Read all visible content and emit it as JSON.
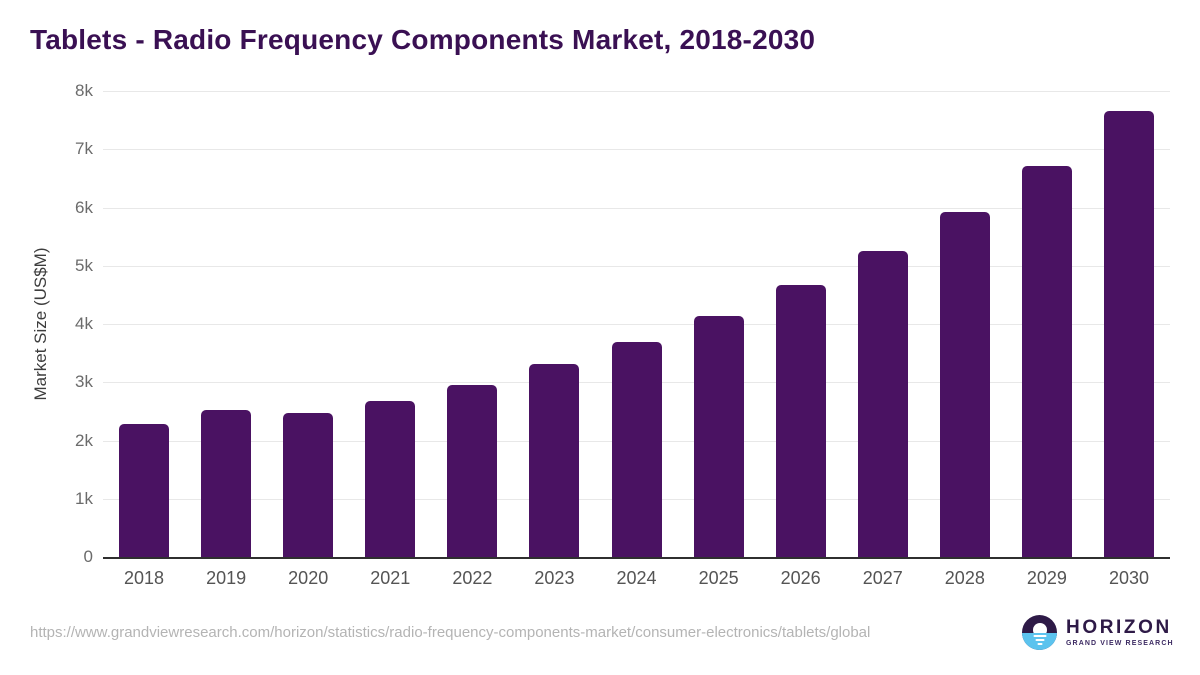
{
  "title": "Tablets - Radio Frequency Components Market, 2018-2030",
  "chart_data": {
    "type": "bar",
    "title": "Tablets - Radio Frequency Components Market, 2018-2030",
    "categories": [
      "2018",
      "2019",
      "2020",
      "2021",
      "2022",
      "2023",
      "2024",
      "2025",
      "2026",
      "2027",
      "2028",
      "2029",
      "2030"
    ],
    "values": [
      2280,
      2520,
      2470,
      2680,
      2950,
      3310,
      3690,
      4130,
      4670,
      5250,
      5930,
      6710,
      7650
    ],
    "xlabel": "",
    "ylabel": "Market Size (US$M)",
    "ylim": [
      0,
      8000
    ],
    "yticks": [
      {
        "label": "8k",
        "value": 8000
      },
      {
        "label": "7k",
        "value": 7000
      },
      {
        "label": "6k",
        "value": 6000
      },
      {
        "label": "5k",
        "value": 5000
      },
      {
        "label": "4k",
        "value": 4000
      },
      {
        "label": "3k",
        "value": 3000
      },
      {
        "label": "2k",
        "value": 2000
      },
      {
        "label": "1k",
        "value": 1000
      },
      {
        "label": "0",
        "value": 0
      }
    ],
    "grid": true,
    "legend": false,
    "bar_color": "#4a1262"
  },
  "colors": {
    "title": "#3a1053",
    "bar": "#4a1262",
    "gridline": "#e8e8e8",
    "axis_line": "#2f2f2f",
    "tick_text": "#6b6b6b",
    "logo_purple": "#2e1a47",
    "logo_blue": "#5cc3ee"
  },
  "footer": {
    "source_url": "https://www.grandviewresearch.com/horizon/statistics/radio-frequency-components-market/consumer-electronics/tablets/global",
    "logo": {
      "name": "HORIZON",
      "tagline": "GRAND VIEW RESEARCH"
    }
  }
}
